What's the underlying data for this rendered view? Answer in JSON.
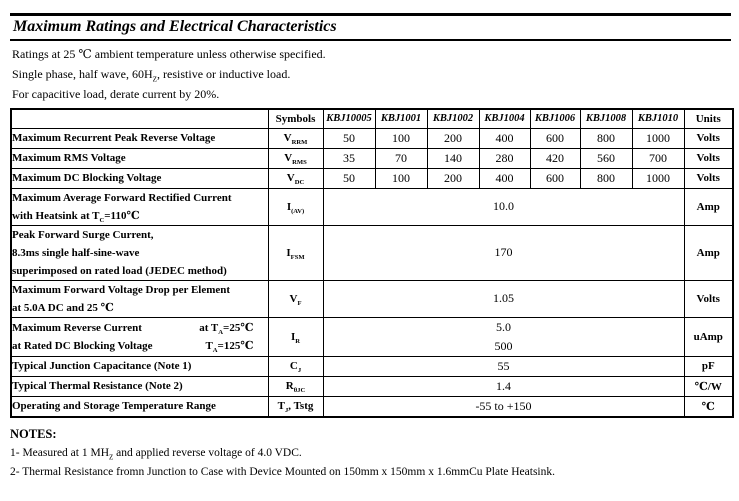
{
  "header": {
    "title": "Maximum Ratings and Electrical Characteristics"
  },
  "intro": {
    "lines": [
      "Ratings at 25 ℃ ambient temperature unless otherwise specified.",
      "Single phase, half wave, 60H_{Z}, resistive or inductive load.",
      "For capacitive load, derate current by 20%."
    ]
  },
  "table": {
    "columns": [
      "",
      "Symbols",
      "KBJ10005",
      "KBJ1001",
      "KBJ1002",
      "KBJ1004",
      "KBJ1006",
      "KBJ1008",
      "KBJ1010",
      "Units"
    ],
    "rows": [
      {
        "label": [
          "Maximum Recurrent Peak Reverse Voltage"
        ],
        "symbol": "V_{RRM}",
        "values": [
          "50",
          "100",
          "200",
          "400",
          "600",
          "800",
          "1000"
        ],
        "unit": "Volts"
      },
      {
        "label": [
          "Maximum RMS Voltage"
        ],
        "symbol": "V_{RMS}",
        "values": [
          "35",
          "70",
          "140",
          "280",
          "420",
          "560",
          "700"
        ],
        "unit": "Volts"
      },
      {
        "label": [
          "Maximum DC Blocking Voltage"
        ],
        "symbol": "V_{DC}",
        "values": [
          "50",
          "100",
          "200",
          "400",
          "600",
          "800",
          "1000"
        ],
        "unit": "Volts"
      },
      {
        "label": [
          "Maximum Average Forward Rectified Current",
          "with Heatsink at T_{C}=110℃"
        ],
        "symbol": "I_{(AV)}",
        "value_lines": [
          "10.0"
        ],
        "unit": "Amp"
      },
      {
        "label": [
          "Peak Forward Surge Current,",
          "8.3ms single half-sine-wave",
          "superimposed on rated load (JEDEC method)"
        ],
        "symbol": "I_{FSM}",
        "value_lines": [
          "170"
        ],
        "unit": "Amp"
      },
      {
        "label": [
          "Maximum Forward Voltage Drop per Element",
          "at 5.0A DC and 25 ℃"
        ],
        "symbol": "V_{F}",
        "value_lines": [
          "1.05"
        ],
        "unit": "Volts"
      },
      {
        "label": [
          [
            "Maximum Reverse Current",
            "at T_{A}=25℃"
          ],
          [
            "at Rated DC Blocking Voltage",
            "T_{A}=125℃"
          ]
        ],
        "symbol": "I_{R}",
        "value_lines": [
          "5.0",
          "500"
        ],
        "unit": "uAmp"
      },
      {
        "label": [
          "Typical Junction Capacitance (Note 1)"
        ],
        "symbol": "C_{J}",
        "value_lines": [
          "55"
        ],
        "unit": "pF"
      },
      {
        "label": [
          "Typical Thermal Resistance (Note 2)"
        ],
        "symbol": "R_{θJC}",
        "value_lines": [
          "1.4"
        ],
        "unit": "℃/W"
      },
      {
        "label": [
          "Operating and Storage Temperature Range"
        ],
        "symbol": "T_{J},  Tstg",
        "value_lines": [
          "-55 to +150"
        ],
        "unit": "℃"
      }
    ]
  },
  "notes": {
    "title": "NOTES:",
    "lines": [
      "1- Measured at 1 MH_{Z} and applied reverse voltage of 4.0 VDC.",
      "2- Thermal Resistance fromn Junction to Case with Device Mounted on 150mm x 150mm x 1.6mmCu Plate Heatsink."
    ]
  }
}
